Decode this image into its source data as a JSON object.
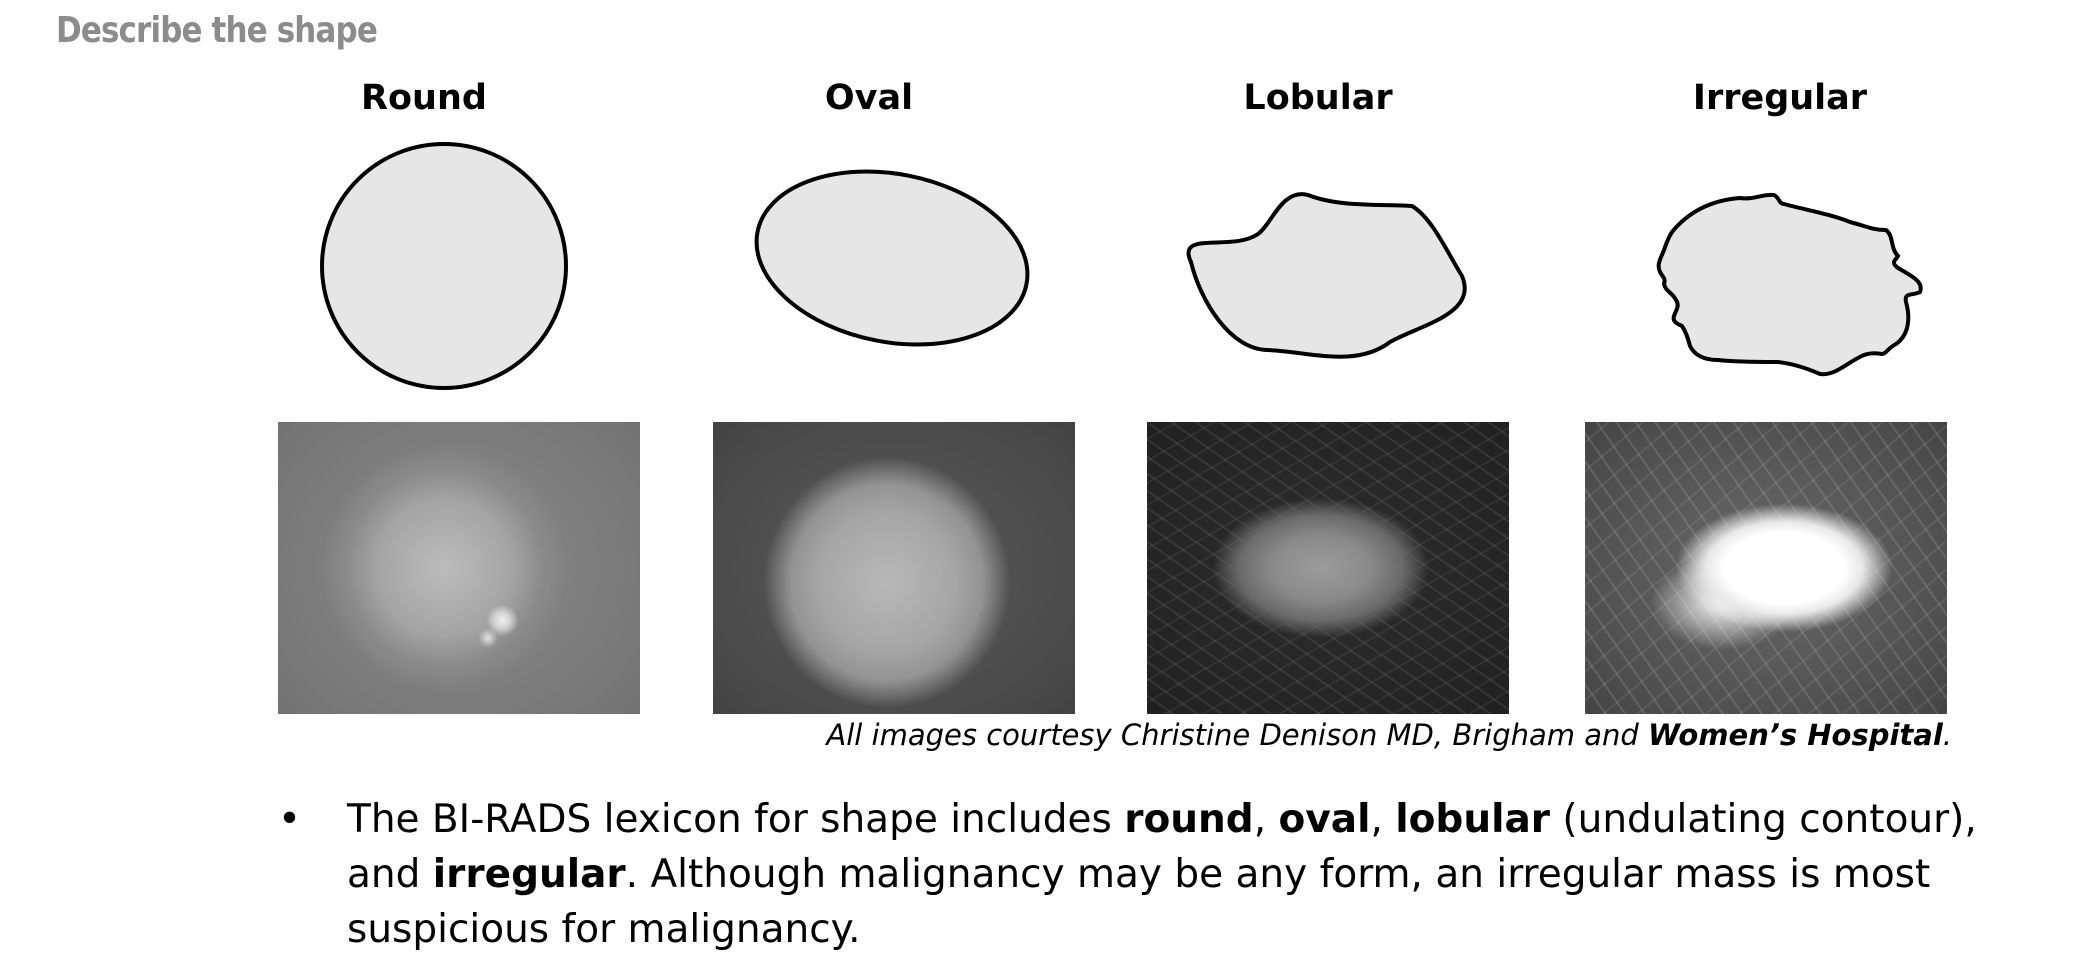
{
  "heading": "Describe the shape",
  "shapes": [
    {
      "label": "Round",
      "icon": "round-shape-icon"
    },
    {
      "label": "Oval",
      "icon": "oval-shape-icon"
    },
    {
      "label": "Lobular",
      "icon": "lobular-shape-icon"
    },
    {
      "label": "Irregular",
      "icon": "irregular-shape-icon"
    }
  ],
  "colors": {
    "shape_fill": "#e6e6e6",
    "shape_stroke": "#000000",
    "heading": "#8c8c8c"
  },
  "caption": {
    "prefix": "All images courtesy Christine Denison MD, Brigham and ",
    "emphasis": "Women’s Hospital",
    "suffix": "."
  },
  "bullet": {
    "t1": "The BI-RADS lexicon for shape includes ",
    "b1": "round",
    "t2": ", ",
    "b2": "oval",
    "t3": ", ",
    "b3": "lobular",
    "t4": " (undulating contour), and ",
    "b4": "irregular",
    "t5": ". Although malignancy may be any form, an irregular mass is most suspicious for malignancy."
  }
}
